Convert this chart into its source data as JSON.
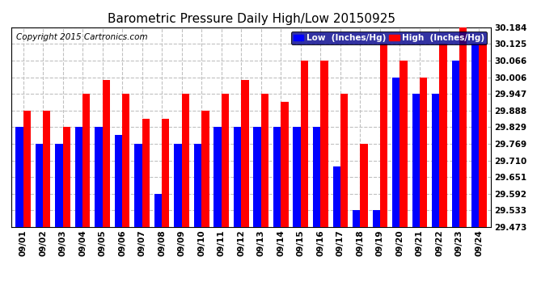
{
  "title": "Barometric Pressure Daily High/Low 20150925",
  "copyright": "Copyright 2015 Cartronics.com",
  "legend_low": "Low  (Inches/Hg)",
  "legend_high": "High  (Inches/Hg)",
  "dates": [
    "09/01",
    "09/02",
    "09/03",
    "09/04",
    "09/05",
    "09/06",
    "09/07",
    "09/08",
    "09/09",
    "09/10",
    "09/11",
    "09/12",
    "09/13",
    "09/14",
    "09/15",
    "09/16",
    "09/17",
    "09/18",
    "09/19",
    "09/20",
    "09/21",
    "09/22",
    "09/23",
    "09/24"
  ],
  "low": [
    29.829,
    29.769,
    29.769,
    29.829,
    29.829,
    29.8,
    29.769,
    29.592,
    29.769,
    29.769,
    29.829,
    29.829,
    29.829,
    29.829,
    29.829,
    29.829,
    29.688,
    29.533,
    29.533,
    30.006,
    29.947,
    29.947,
    30.066,
    30.125
  ],
  "high": [
    29.888,
    29.888,
    29.829,
    29.947,
    29.997,
    29.947,
    29.86,
    29.86,
    29.947,
    29.888,
    29.947,
    29.997,
    29.947,
    29.918,
    30.066,
    30.066,
    29.947,
    29.769,
    30.125,
    30.066,
    30.006,
    30.125,
    30.184,
    30.125
  ],
  "ylim_low": 29.473,
  "ylim_high": 30.184,
  "yticks": [
    29.473,
    29.533,
    29.592,
    29.651,
    29.71,
    29.769,
    29.829,
    29.888,
    29.947,
    30.006,
    30.066,
    30.125,
    30.184
  ],
  "low_color": "#0000ff",
  "high_color": "#ff0000",
  "bg_color": "#ffffff",
  "grid_color": "#c0c0c0",
  "title_fontsize": 11,
  "copyright_fontsize": 7.5,
  "tick_fontsize": 7.5,
  "bar_width": 0.38
}
